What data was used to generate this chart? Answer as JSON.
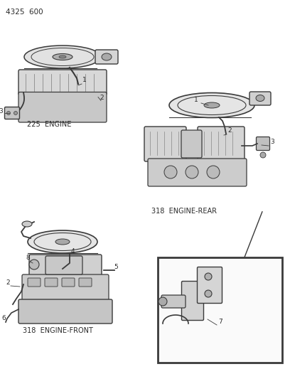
{
  "title": "4325  600",
  "background_color": "#ffffff",
  "line_color": "#3a3a3a",
  "text_color": "#2a2a2a",
  "gray_fill": "#d8d8d8",
  "light_fill": "#eeeeee",
  "labels": {
    "top_left": "225  ENGINE",
    "top_right": "318  ENGINE-REAR",
    "bottom_left": "318  ENGINE-FRONT"
  },
  "figsize": [
    4.08,
    5.33
  ],
  "dpi": 100
}
